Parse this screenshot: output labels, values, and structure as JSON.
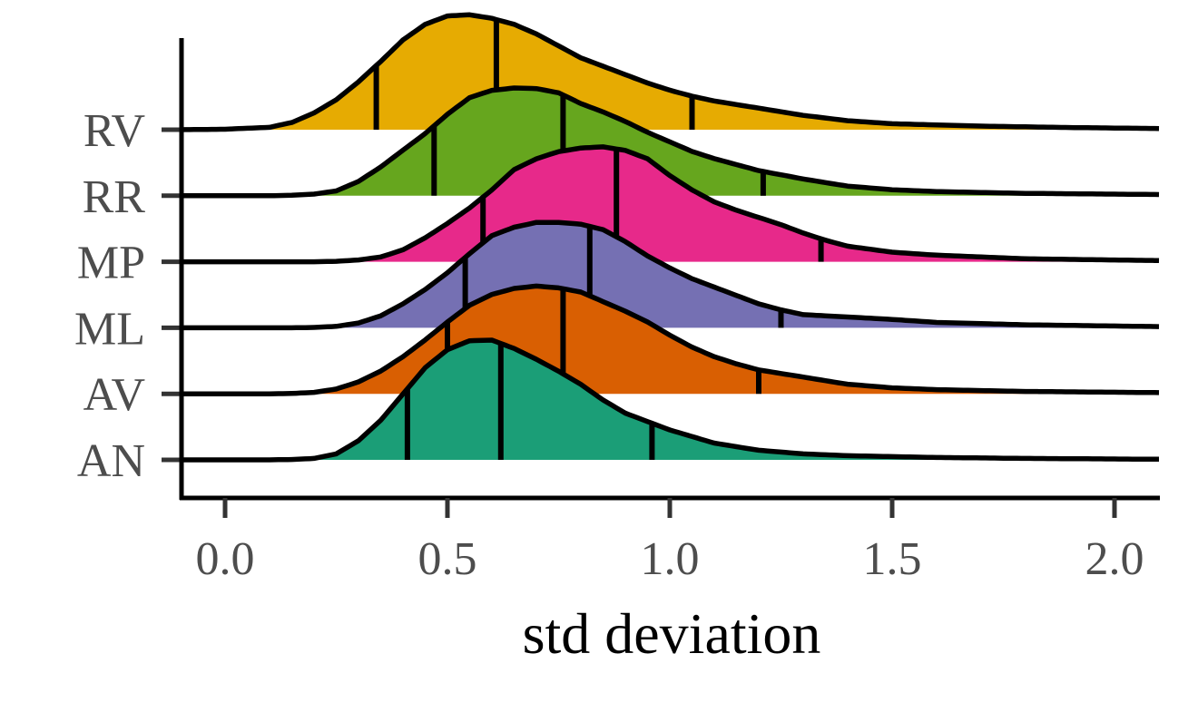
{
  "chart_data": {
    "type": "ridgeline",
    "title": "",
    "xlabel": "std deviation",
    "ylabel": "",
    "xlim": [
      -0.1,
      2.1
    ],
    "x_ticks": [
      0.0,
      0.5,
      1.0,
      1.5,
      2.0
    ],
    "x_tick_labels": [
      "0.0",
      "0.5",
      "1.0",
      "1.5",
      "2.0"
    ],
    "categories": [
      "AN",
      "AV",
      "ML",
      "MP",
      "RR",
      "RV"
    ],
    "grid": false,
    "legend": "none",
    "quantile_lines": [
      0.25,
      0.5,
      0.75
    ],
    "series": [
      {
        "name": "AN",
        "color": "#1B9E77",
        "quantiles": [
          0.41,
          0.62,
          0.96
        ],
        "density": [
          [
            -0.1,
            0
          ],
          [
            0.1,
            0
          ],
          [
            0.15,
            0.003
          ],
          [
            0.2,
            0.012
          ],
          [
            0.25,
            0.05
          ],
          [
            0.3,
            0.16
          ],
          [
            0.35,
            0.33
          ],
          [
            0.4,
            0.55
          ],
          [
            0.45,
            0.77
          ],
          [
            0.5,
            0.92
          ],
          [
            0.55,
            0.995
          ],
          [
            0.6,
            1.0
          ],
          [
            0.65,
            0.93
          ],
          [
            0.7,
            0.84
          ],
          [
            0.75,
            0.74
          ],
          [
            0.8,
            0.63
          ],
          [
            0.85,
            0.5
          ],
          [
            0.9,
            0.39
          ],
          [
            0.95,
            0.32
          ],
          [
            1.0,
            0.25
          ],
          [
            1.1,
            0.14
          ],
          [
            1.2,
            0.08
          ],
          [
            1.3,
            0.05
          ],
          [
            1.4,
            0.035
          ],
          [
            1.6,
            0.02
          ],
          [
            1.8,
            0.012
          ],
          [
            2.1,
            0.005
          ]
        ]
      },
      {
        "name": "AV",
        "color": "#D95F02",
        "quantiles": [
          0.5,
          0.76,
          1.2
        ],
        "density": [
          [
            -0.1,
            0
          ],
          [
            0.1,
            0
          ],
          [
            0.15,
            0.003
          ],
          [
            0.2,
            0.012
          ],
          [
            0.25,
            0.04
          ],
          [
            0.3,
            0.1
          ],
          [
            0.35,
            0.19
          ],
          [
            0.4,
            0.31
          ],
          [
            0.45,
            0.45
          ],
          [
            0.5,
            0.6
          ],
          [
            0.55,
            0.74
          ],
          [
            0.6,
            0.83
          ],
          [
            0.65,
            0.88
          ],
          [
            0.7,
            0.9
          ],
          [
            0.75,
            0.885
          ],
          [
            0.8,
            0.85
          ],
          [
            0.85,
            0.77
          ],
          [
            0.9,
            0.69
          ],
          [
            0.95,
            0.6
          ],
          [
            1.0,
            0.49
          ],
          [
            1.05,
            0.39
          ],
          [
            1.1,
            0.31
          ],
          [
            1.15,
            0.25
          ],
          [
            1.2,
            0.2
          ],
          [
            1.3,
            0.14
          ],
          [
            1.4,
            0.08
          ],
          [
            1.5,
            0.05
          ],
          [
            1.6,
            0.035
          ],
          [
            1.8,
            0.02
          ],
          [
            2.1,
            0.01
          ]
        ]
      },
      {
        "name": "ML",
        "color": "#7570B3",
        "quantiles": [
          0.54,
          0.82,
          1.25
        ],
        "density": [
          [
            -0.1,
            0
          ],
          [
            0.15,
            0
          ],
          [
            0.2,
            0.003
          ],
          [
            0.25,
            0.012
          ],
          [
            0.3,
            0.04
          ],
          [
            0.35,
            0.1
          ],
          [
            0.4,
            0.2
          ],
          [
            0.45,
            0.32
          ],
          [
            0.5,
            0.46
          ],
          [
            0.55,
            0.62
          ],
          [
            0.6,
            0.77
          ],
          [
            0.65,
            0.84
          ],
          [
            0.7,
            0.88
          ],
          [
            0.75,
            0.88
          ],
          [
            0.8,
            0.865
          ],
          [
            0.85,
            0.82
          ],
          [
            0.9,
            0.72
          ],
          [
            0.95,
            0.6
          ],
          [
            1.0,
            0.5
          ],
          [
            1.05,
            0.41
          ],
          [
            1.1,
            0.34
          ],
          [
            1.15,
            0.27
          ],
          [
            1.2,
            0.2
          ],
          [
            1.25,
            0.15
          ],
          [
            1.3,
            0.11
          ],
          [
            1.4,
            0.09
          ],
          [
            1.5,
            0.07
          ],
          [
            1.6,
            0.045
          ],
          [
            1.8,
            0.025
          ],
          [
            2.1,
            0.01
          ]
        ]
      },
      {
        "name": "MP",
        "color": "#E7298A",
        "quantiles": [
          0.58,
          0.88,
          1.34
        ],
        "density": [
          [
            -0.1,
            0
          ],
          [
            0.2,
            0
          ],
          [
            0.25,
            0.004
          ],
          [
            0.3,
            0.015
          ],
          [
            0.35,
            0.04
          ],
          [
            0.4,
            0.1
          ],
          [
            0.45,
            0.2
          ],
          [
            0.5,
            0.32
          ],
          [
            0.55,
            0.45
          ],
          [
            0.6,
            0.6
          ],
          [
            0.65,
            0.77
          ],
          [
            0.7,
            0.86
          ],
          [
            0.75,
            0.92
          ],
          [
            0.8,
            0.95
          ],
          [
            0.85,
            0.96
          ],
          [
            0.9,
            0.93
          ],
          [
            0.95,
            0.86
          ],
          [
            1.0,
            0.72
          ],
          [
            1.05,
            0.6
          ],
          [
            1.1,
            0.5
          ],
          [
            1.15,
            0.43
          ],
          [
            1.2,
            0.37
          ],
          [
            1.25,
            0.31
          ],
          [
            1.3,
            0.24
          ],
          [
            1.35,
            0.18
          ],
          [
            1.4,
            0.13
          ],
          [
            1.5,
            0.08
          ],
          [
            1.6,
            0.055
          ],
          [
            1.8,
            0.025
          ],
          [
            2.1,
            0.01
          ]
        ]
      },
      {
        "name": "RR",
        "color": "#66A61E",
        "quantiles": [
          0.47,
          0.76,
          1.21
        ],
        "density": [
          [
            -0.1,
            0
          ],
          [
            0.1,
            0
          ],
          [
            0.15,
            0.004
          ],
          [
            0.2,
            0.014
          ],
          [
            0.25,
            0.04
          ],
          [
            0.3,
            0.12
          ],
          [
            0.35,
            0.24
          ],
          [
            0.4,
            0.38
          ],
          [
            0.45,
            0.52
          ],
          [
            0.5,
            0.68
          ],
          [
            0.55,
            0.82
          ],
          [
            0.6,
            0.88
          ],
          [
            0.65,
            0.9
          ],
          [
            0.7,
            0.895
          ],
          [
            0.75,
            0.86
          ],
          [
            0.8,
            0.77
          ],
          [
            0.85,
            0.7
          ],
          [
            0.9,
            0.62
          ],
          [
            0.95,
            0.53
          ],
          [
            1.0,
            0.45
          ],
          [
            1.05,
            0.37
          ],
          [
            1.1,
            0.31
          ],
          [
            1.15,
            0.26
          ],
          [
            1.2,
            0.21
          ],
          [
            1.3,
            0.14
          ],
          [
            1.4,
            0.08
          ],
          [
            1.5,
            0.05
          ],
          [
            1.6,
            0.035
          ],
          [
            1.8,
            0.02
          ],
          [
            2.1,
            0.01
          ]
        ]
      },
      {
        "name": "RV",
        "color": "#E6AB02",
        "quantiles": [
          0.34,
          0.61,
          1.05
        ],
        "density": [
          [
            -0.1,
            0
          ],
          [
            0.0,
            0.004
          ],
          [
            0.1,
            0.02
          ],
          [
            0.15,
            0.06
          ],
          [
            0.2,
            0.14
          ],
          [
            0.25,
            0.25
          ],
          [
            0.3,
            0.4
          ],
          [
            0.35,
            0.57
          ],
          [
            0.4,
            0.75
          ],
          [
            0.45,
            0.88
          ],
          [
            0.5,
            0.95
          ],
          [
            0.55,
            0.96
          ],
          [
            0.6,
            0.93
          ],
          [
            0.65,
            0.88
          ],
          [
            0.7,
            0.8
          ],
          [
            0.75,
            0.7
          ],
          [
            0.8,
            0.6
          ],
          [
            0.85,
            0.53
          ],
          [
            0.9,
            0.46
          ],
          [
            0.95,
            0.39
          ],
          [
            1.0,
            0.33
          ],
          [
            1.05,
            0.28
          ],
          [
            1.1,
            0.24
          ],
          [
            1.2,
            0.18
          ],
          [
            1.3,
            0.12
          ],
          [
            1.4,
            0.075
          ],
          [
            1.5,
            0.05
          ],
          [
            1.7,
            0.03
          ],
          [
            1.9,
            0.018
          ],
          [
            2.1,
            0.01
          ]
        ]
      }
    ]
  }
}
